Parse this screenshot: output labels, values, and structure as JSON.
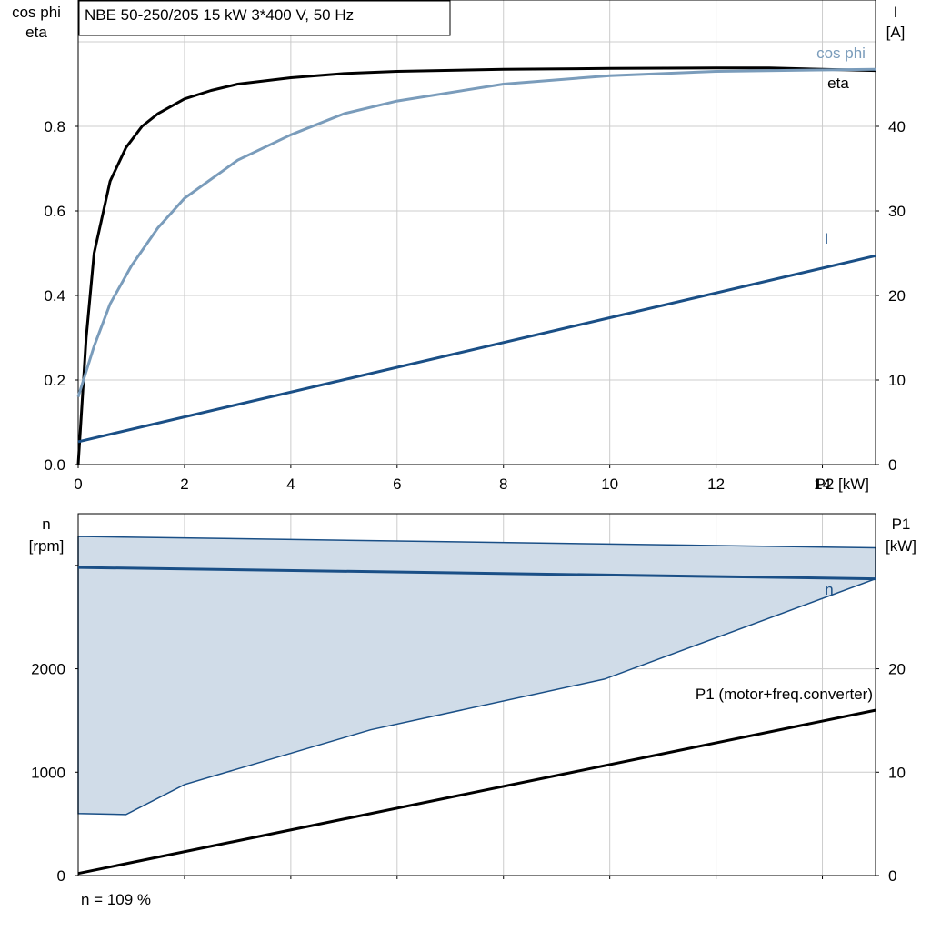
{
  "chart_data": [
    {
      "type": "line",
      "title": "NBE 50-250/205   15 kW   3*400 V, 50 Hz",
      "xlabel": "P2 [kW]",
      "ylabel_left": [
        "cos phi",
        "eta"
      ],
      "ylabel_right": [
        "I",
        "[A]"
      ],
      "xlim": [
        0,
        15
      ],
      "ylim_left": [
        0,
        1.0
      ],
      "ylim_right": [
        0,
        50
      ],
      "x_ticks": [
        "0",
        "2",
        "4",
        "6",
        "8",
        "10",
        "12",
        "14"
      ],
      "y_ticks_left": [
        "0.0",
        "0.2",
        "0.4",
        "0.6",
        "0.8"
      ],
      "y_ticks_right": [
        "0",
        "10",
        "20",
        "30",
        "40"
      ],
      "grid": true,
      "series": [
        {
          "name": "eta",
          "axis": "left",
          "color": "#000000",
          "x": [
            0,
            0.15,
            0.3,
            0.6,
            0.9,
            1.2,
            1.5,
            2,
            2.5,
            3,
            4,
            5,
            6,
            8,
            10,
            12,
            13,
            15
          ],
          "y": [
            0,
            0.3,
            0.5,
            0.67,
            0.75,
            0.8,
            0.83,
            0.865,
            0.885,
            0.9,
            0.915,
            0.925,
            0.93,
            0.935,
            0.937,
            0.938,
            0.938,
            0.932
          ]
        },
        {
          "name": "cos phi",
          "axis": "left",
          "color": "#7a9cbb",
          "x": [
            0,
            0.3,
            0.6,
            1,
            1.5,
            2,
            3,
            4,
            5,
            6,
            8,
            10,
            12,
            15
          ],
          "y": [
            0.16,
            0.28,
            0.38,
            0.47,
            0.56,
            0.63,
            0.72,
            0.78,
            0.83,
            0.86,
            0.9,
            0.92,
            0.93,
            0.935
          ]
        },
        {
          "name": "I",
          "axis": "right",
          "color": "#1a4f86",
          "x": [
            0,
            15
          ],
          "y": [
            2.7,
            24.7
          ]
        }
      ]
    },
    {
      "type": "area",
      "xlabel": "",
      "ylabel_left": [
        "n",
        "[rpm]"
      ],
      "ylabel_right": [
        "P1",
        "[kW]"
      ],
      "xlim": [
        0,
        15
      ],
      "ylim_left": [
        0,
        3500
      ],
      "ylim_right": [
        0,
        35
      ],
      "y_ticks_left": [
        "0",
        "1000",
        "2000"
      ],
      "y_ticks_right": [
        "0",
        "10",
        "20"
      ],
      "grid": true,
      "speed_range": {
        "upper_x": [
          0,
          15
        ],
        "upper_y": [
          3280,
          3170
        ],
        "lower_x": [
          0,
          0.9,
          2,
          5.5,
          9.9,
          15
        ],
        "lower_y": [
          600,
          590,
          880,
          1410,
          1900,
          2870
        ]
      },
      "series": [
        {
          "name": "n",
          "axis": "left",
          "color": "#1a4f86",
          "x": [
            0,
            15
          ],
          "y": [
            2980,
            2870
          ]
        },
        {
          "name": "P1 (motor+freq.converter)",
          "axis": "right",
          "color": "#000000",
          "x": [
            0,
            15
          ],
          "y": [
            0.2,
            16.0
          ]
        }
      ],
      "fill_color": "#d0dce8",
      "footer": "n = 109 %"
    }
  ]
}
